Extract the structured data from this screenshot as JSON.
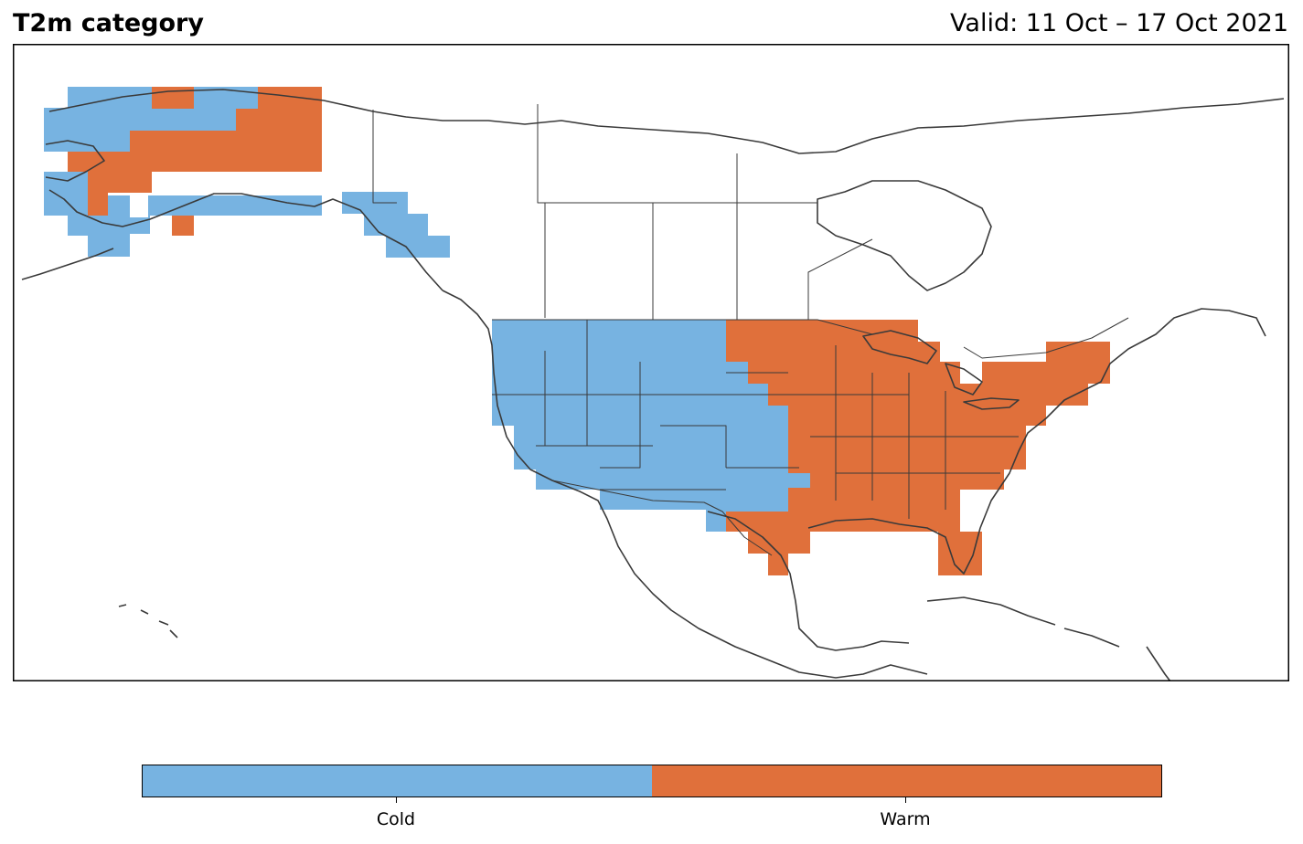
{
  "header": {
    "title": "T2m category",
    "valid_label": "Valid: 11 Oct – 17 Oct 2021"
  },
  "legend": {
    "categories": [
      {
        "label": "Cold",
        "color": "#77b3e1"
      },
      {
        "label": "Warm",
        "color": "#e0703b"
      }
    ]
  },
  "colors": {
    "cold": "#77b3e1",
    "warm": "#e0703b",
    "coastline": "#3a3a3a",
    "frame": "#000000"
  },
  "map": {
    "projection": "Plate Carrée",
    "extent": {
      "lon": [
        -180,
        -50
      ],
      "lat": [
        10,
        75
      ]
    },
    "regions": [
      {
        "region": "Alaska (west, south and Aleutians)",
        "category": "Cold"
      },
      {
        "region": "Alaska (northern interior and Yukon border)",
        "category": "Warm"
      },
      {
        "region": "Alaska panhandle / coastal British Columbia",
        "category": "Cold"
      },
      {
        "region": "Western and central CONUS",
        "category": "Cold"
      },
      {
        "region": "Central-eastern and eastern CONUS",
        "category": "Warm"
      }
    ]
  }
}
